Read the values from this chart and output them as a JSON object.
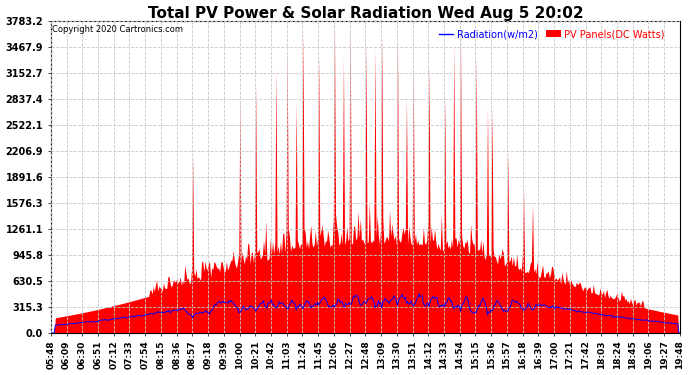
{
  "title": "Total PV Power & Solar Radiation Wed Aug 5 20:02",
  "copyright": "Copyright 2020 Cartronics.com",
  "legend_radiation": "Radiation(w/m2)",
  "legend_pv": "PV Panels(DC Watts)",
  "yticks": [
    0.0,
    315.3,
    630.5,
    945.8,
    1261.1,
    1576.3,
    1891.6,
    2206.9,
    2522.1,
    2837.4,
    3152.7,
    3467.9,
    3783.2
  ],
  "ymax": 3783.2,
  "xtick_labels": [
    "05:48",
    "06:09",
    "06:30",
    "06:51",
    "07:12",
    "07:33",
    "07:54",
    "08:15",
    "08:36",
    "08:57",
    "09:18",
    "09:39",
    "10:00",
    "10:21",
    "10:42",
    "11:03",
    "11:24",
    "11:45",
    "12:06",
    "12:27",
    "12:48",
    "13:09",
    "13:30",
    "13:51",
    "14:12",
    "14:33",
    "14:54",
    "15:15",
    "15:36",
    "15:57",
    "16:18",
    "16:39",
    "17:00",
    "17:21",
    "17:42",
    "18:03",
    "18:24",
    "18:45",
    "19:06",
    "19:27",
    "19:48"
  ],
  "bg_color": "#ffffff",
  "grid_color": "#c8c8c8",
  "pv_color": "#ff0000",
  "radiation_color": "#0000ff",
  "title_color": "#000000",
  "copyright_color": "#000000",
  "legend_radiation_color": "#0000ff",
  "legend_pv_color": "#ff0000"
}
